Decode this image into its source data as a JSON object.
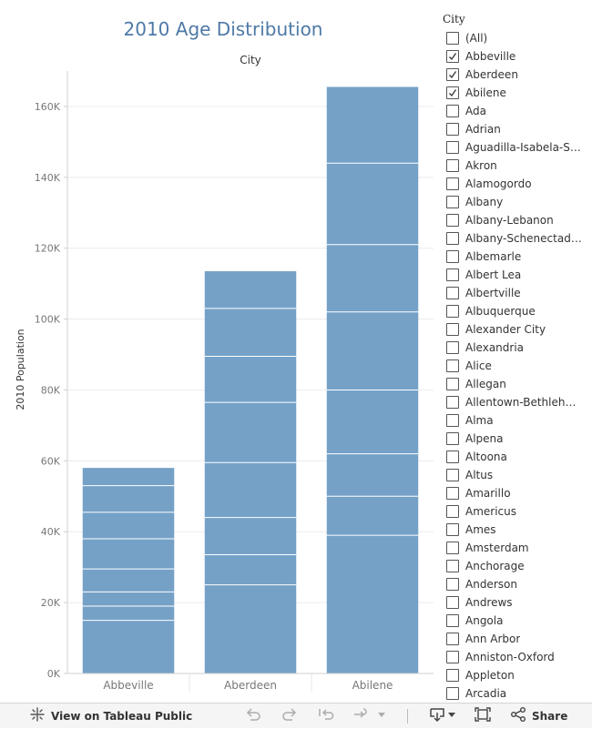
{
  "chart_data": {
    "type": "bar",
    "stacked": true,
    "title": "2010 Age Distribution",
    "column_header": "City",
    "xlabel": "",
    "ylabel": "2010 Population",
    "ylim": [
      0,
      170000
    ],
    "yticks": [
      0,
      20000,
      40000,
      60000,
      80000,
      100000,
      120000,
      140000,
      160000
    ],
    "ytick_labels": [
      "0K",
      "20K",
      "40K",
      "60K",
      "80K",
      "100K",
      "120K",
      "140K",
      "160K"
    ],
    "categories": [
      "Abbeville",
      "Aberdeen",
      "Abilene"
    ],
    "segment_boundaries": [
      [
        15000,
        19000,
        23000,
        29500,
        38000,
        45500,
        53000
      ],
      [
        25000,
        33500,
        44000,
        59500,
        76500,
        89500,
        103000
      ],
      [
        39000,
        50000,
        62000,
        80000,
        102000,
        121000,
        144000
      ]
    ],
    "totals": [
      58000,
      113500,
      165500
    ],
    "colors": {
      "bar": "#75a1c7",
      "segment_line": "#ffffff",
      "grid": "#ececec",
      "axis": "#d0d0d0",
      "title": "#4e79a7"
    }
  },
  "filter": {
    "title": "City",
    "items": [
      {
        "label": "(All)",
        "checked": false
      },
      {
        "label": "Abbeville",
        "checked": true
      },
      {
        "label": "Aberdeen",
        "checked": true
      },
      {
        "label": "Abilene",
        "checked": true
      },
      {
        "label": "Ada",
        "checked": false
      },
      {
        "label": "Adrian",
        "checked": false
      },
      {
        "label": "Aguadilla-Isabela-Sa...",
        "checked": false
      },
      {
        "label": "Akron",
        "checked": false
      },
      {
        "label": "Alamogordo",
        "checked": false
      },
      {
        "label": "Albany",
        "checked": false
      },
      {
        "label": "Albany-Lebanon",
        "checked": false
      },
      {
        "label": "Albany-Schenectady...",
        "checked": false
      },
      {
        "label": "Albemarle",
        "checked": false
      },
      {
        "label": "Albert Lea",
        "checked": false
      },
      {
        "label": "Albertville",
        "checked": false
      },
      {
        "label": "Albuquerque",
        "checked": false
      },
      {
        "label": "Alexander City",
        "checked": false
      },
      {
        "label": "Alexandria",
        "checked": false
      },
      {
        "label": "Alice",
        "checked": false
      },
      {
        "label": "Allegan",
        "checked": false
      },
      {
        "label": "Allentown-Bethlehe...",
        "checked": false
      },
      {
        "label": "Alma",
        "checked": false
      },
      {
        "label": "Alpena",
        "checked": false
      },
      {
        "label": "Altoona",
        "checked": false
      },
      {
        "label": "Altus",
        "checked": false
      },
      {
        "label": "Amarillo",
        "checked": false
      },
      {
        "label": "Americus",
        "checked": false
      },
      {
        "label": "Ames",
        "checked": false
      },
      {
        "label": "Amsterdam",
        "checked": false
      },
      {
        "label": "Anchorage",
        "checked": false
      },
      {
        "label": "Anderson",
        "checked": false
      },
      {
        "label": "Andrews",
        "checked": false
      },
      {
        "label": "Angola",
        "checked": false
      },
      {
        "label": "Ann Arbor",
        "checked": false
      },
      {
        "label": "Anniston-Oxford",
        "checked": false
      },
      {
        "label": "Appleton",
        "checked": false
      },
      {
        "label": "Arcadia",
        "checked": false
      }
    ]
  },
  "toolbar": {
    "view_label": "View on Tableau Public",
    "share_label": "Share"
  }
}
